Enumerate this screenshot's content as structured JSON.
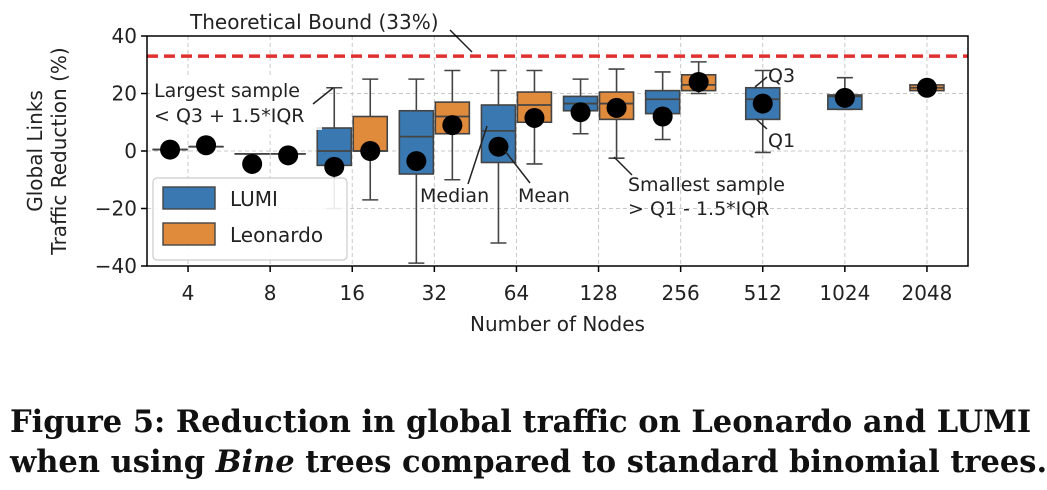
{
  "chart_data": {
    "type": "box",
    "xlabel": "Number of Nodes",
    "ylabel": [
      "Global Links",
      "Traffic Reduction (%)"
    ],
    "ylim": [
      -40,
      40
    ],
    "yticks": [
      -40,
      -20,
      0,
      20,
      40
    ],
    "ytick_labels": [
      "−40",
      "−20",
      "0",
      "20",
      "40"
    ],
    "categories": [
      "4",
      "8",
      "16",
      "32",
      "64",
      "128",
      "256",
      "512",
      "1024",
      "2048"
    ],
    "grid": true,
    "legend_position": "lower-left",
    "series": [
      {
        "name": "LUMI",
        "color": "#3a78b1",
        "boxes": [
          {
            "category": "4",
            "whislo": 0.5,
            "q1": 0.5,
            "med": 0.5,
            "q3": 0.5,
            "whishi": 0.5,
            "mean": 0.5
          },
          {
            "category": "8",
            "whislo": -1.0,
            "q1": -1.0,
            "med": -1.0,
            "q3": -1.0,
            "whishi": -1.0,
            "mean": -4.5
          },
          {
            "category": "16",
            "whislo": -20,
            "q1": -5,
            "med": 0,
            "q3": 8,
            "whishi": 22,
            "mean": -5.5
          },
          {
            "category": "32",
            "whislo": -39,
            "q1": -8,
            "med": 5,
            "q3": 14,
            "whishi": 25,
            "mean": -3.5
          },
          {
            "category": "64",
            "whislo": -32,
            "q1": -4,
            "med": 7,
            "q3": 16,
            "whishi": 28,
            "mean": 1.5
          },
          {
            "category": "128",
            "whislo": 6,
            "q1": 14,
            "med": 16.5,
            "q3": 19,
            "whishi": 25,
            "mean": 13.5
          },
          {
            "category": "256",
            "whislo": 4,
            "q1": 13,
            "med": 18,
            "q3": 21,
            "whishi": 27.5,
            "mean": 12
          },
          {
            "category": "512",
            "whislo": -0.5,
            "q1": 11,
            "med": 18,
            "q3": 22,
            "whishi": 28,
            "mean": 16.5
          },
          {
            "category": "1024",
            "whislo": 14.5,
            "q1": 14.5,
            "med": 19,
            "q3": 19.5,
            "whishi": 25.5,
            "mean": 18.5
          },
          null
        ]
      },
      {
        "name": "Leonardo",
        "color": "#e08a3c",
        "boxes": [
          {
            "category": "4",
            "whislo": 1.5,
            "q1": 1.5,
            "med": 1.5,
            "q3": 1.5,
            "whishi": 1.5,
            "mean": 2.0
          },
          {
            "category": "8",
            "whislo": -1.0,
            "q1": -1.0,
            "med": -1.0,
            "q3": -1.0,
            "whishi": -1.0,
            "mean": -1.5
          },
          {
            "category": "16",
            "whislo": -17,
            "q1": 0,
            "med": 0,
            "q3": 12,
            "whishi": 25,
            "mean": 0
          },
          {
            "category": "32",
            "whislo": -10,
            "q1": 6,
            "med": 12,
            "q3": 17,
            "whishi": 28,
            "mean": 9
          },
          {
            "category": "64",
            "whislo": -4.5,
            "q1": 10,
            "med": 16,
            "q3": 20.5,
            "whishi": 28,
            "mean": 11.5
          },
          {
            "category": "128",
            "whislo": -2.5,
            "q1": 11,
            "med": 16.5,
            "q3": 20.5,
            "whishi": 28.5,
            "mean": 15
          },
          {
            "category": "256",
            "whislo": 20,
            "q1": 21,
            "med": 23,
            "q3": 26.5,
            "whishi": 31,
            "mean": 24
          },
          null,
          null,
          {
            "category": "2048",
            "whislo": 21,
            "q1": 21,
            "med": 22,
            "q3": 23,
            "whishi": 23,
            "mean": 22
          }
        ]
      }
    ],
    "reference_line": {
      "value": 33,
      "label": "Theoretical Bound (33%)",
      "color": "#e03030"
    },
    "annotations": [
      {
        "id": "largest",
        "lines": [
          "Largest sample",
          "< Q3 + 1.5*IQR"
        ]
      },
      {
        "id": "median",
        "lines": [
          "Median"
        ]
      },
      {
        "id": "mean",
        "lines": [
          "Mean"
        ]
      },
      {
        "id": "smallest",
        "lines": [
          "Smallest sample",
          "> Q1 - 1.5*IQR"
        ]
      },
      {
        "id": "q3",
        "lines": [
          "Q3"
        ]
      },
      {
        "id": "q1",
        "lines": [
          "Q1"
        ]
      }
    ]
  },
  "caption": {
    "line1": "Figure 5: Reduction in global traffic on Leonardo and LUMI",
    "line2_pre": "when using ",
    "line2_em": "Bine",
    "line2_post": " trees compared to standard binomial trees."
  }
}
